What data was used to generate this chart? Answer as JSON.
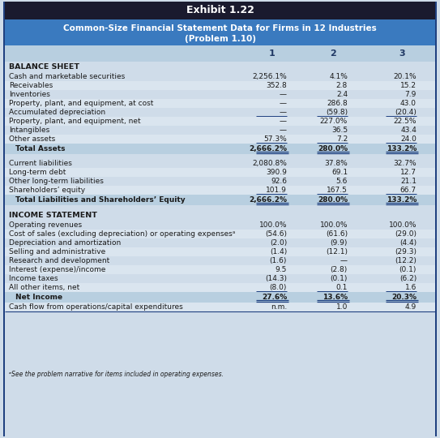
{
  "title1": "Exhibit 1.22",
  "title2": "Common-Size Financial Statement Data for Firms in 12 Industries",
  "title3": "(Problem 1.10)",
  "columns": [
    "1",
    "2",
    "3"
  ],
  "section1_header": "BALANCE SHEET",
  "balance_sheet_rows": [
    {
      "label": "Cash and marketable securities",
      "v1": "2,256.1%",
      "v2": "4.1%",
      "v3": "20.1%",
      "top_line": false
    },
    {
      "label": "Receivables",
      "v1": "352.8",
      "v2": "2.8",
      "v3": "15.2",
      "top_line": false
    },
    {
      "label": "Inventories",
      "v1": "—",
      "v2": "2.4",
      "v3": "7.9",
      "top_line": false
    },
    {
      "label": "Property, plant, and equipment, at cost",
      "v1": "—",
      "v2": "286.8",
      "v3": "43.0",
      "top_line": false
    },
    {
      "label": "Accumulated depreciation",
      "v1": "—",
      "v2": "(59.8)",
      "v3": "(20.4)",
      "top_line": false,
      "bot_line": true
    },
    {
      "label": "Property, plant, and equipment, net",
      "v1": "—",
      "v2": "227.0%",
      "v3": "22.5%",
      "top_line": false
    },
    {
      "label": "Intangibles",
      "v1": "—",
      "v2": "36.5",
      "v3": "43.4",
      "top_line": false
    },
    {
      "label": "Other assets",
      "v1": "57.3%",
      "v2": "7.2",
      "v3": "24.0",
      "top_line": false,
      "bot_line": true
    }
  ],
  "total_assets_row": {
    "label": "Total Assets",
    "v1": "2,666.2%",
    "v2": "280.0%",
    "v3": "133.2%"
  },
  "liabilities_rows": [
    {
      "label": "Current liabilities",
      "v1": "2,080.8%",
      "v2": "37.8%",
      "v3": "32.7%"
    },
    {
      "label": "Long-term debt",
      "v1": "390.9",
      "v2": "69.1",
      "v3": "12.7"
    },
    {
      "label": "Other long-term liabilities",
      "v1": "92.6",
      "v2": "5.6",
      "v3": "21.1"
    },
    {
      "label": "Shareholders’ equity",
      "v1": "101.9",
      "v2": "167.5",
      "v3": "66.7",
      "bot_line": true
    }
  ],
  "total_liabilities_row": {
    "label": "Total Liabilities and Shareholders’ Equity",
    "v1": "2,666.2%",
    "v2": "280.0%",
    "v3": "133.2%"
  },
  "section2_header": "INCOME STATEMENT",
  "income_rows": [
    {
      "label": "Operating revenues",
      "v1": "100.0%",
      "v2": "100.0%",
      "v3": "100.0%"
    },
    {
      "label": "Cost of sales (excluding depreciation) or operating expensesᵃ",
      "v1": "(54.6)",
      "v2": "(61.6)",
      "v3": "(29.0)"
    },
    {
      "label": "Depreciation and amortization",
      "v1": "(2.0)",
      "v2": "(9.9)",
      "v3": "(4.4)"
    },
    {
      "label": "Selling and administrative",
      "v1": "(1.4)",
      "v2": "(12.1)",
      "v3": "(29.3)"
    },
    {
      "label": "Research and development",
      "v1": "(1.6)",
      "v2": "—",
      "v3": "(12.2)"
    },
    {
      "label": "Interest (expense)/income",
      "v1": "9.5",
      "v2": "(2.8)",
      "v3": "(0.1)"
    },
    {
      "label": "Income taxes",
      "v1": "(14.3)",
      "v2": "(0.1)",
      "v3": "(6.2)"
    },
    {
      "label": "All other items, net",
      "v1": "(8.0)",
      "v2": "0.1",
      "v3": "1.6",
      "bot_line": true
    }
  ],
  "net_income_row": {
    "label": "Net Income",
    "v1": "27.6%",
    "v2": "13.6%",
    "v3": "20.3%"
  },
  "cashflow_row": {
    "label": "Cash flow from operations/capital expenditures",
    "v1": "n.m.",
    "v2": "1.0",
    "v3": "4.9"
  },
  "footnote": "ᵃSee the problem narrative for items included in operating expenses.",
  "header_bg": "#1a1a2e",
  "subheader_bg": "#3a7abf",
  "col_header_bg": "#b8cfe0",
  "row_bg_light": "#cfdce9",
  "row_bg_alt": "#dae5ef",
  "bold_row_bg": "#b8cfe0",
  "footnote_bg": "#cfdce9",
  "text_dark": "#1a1a1a",
  "text_white": "#ffffff",
  "text_blue": "#1f3864",
  "line_color": "#1f4080"
}
